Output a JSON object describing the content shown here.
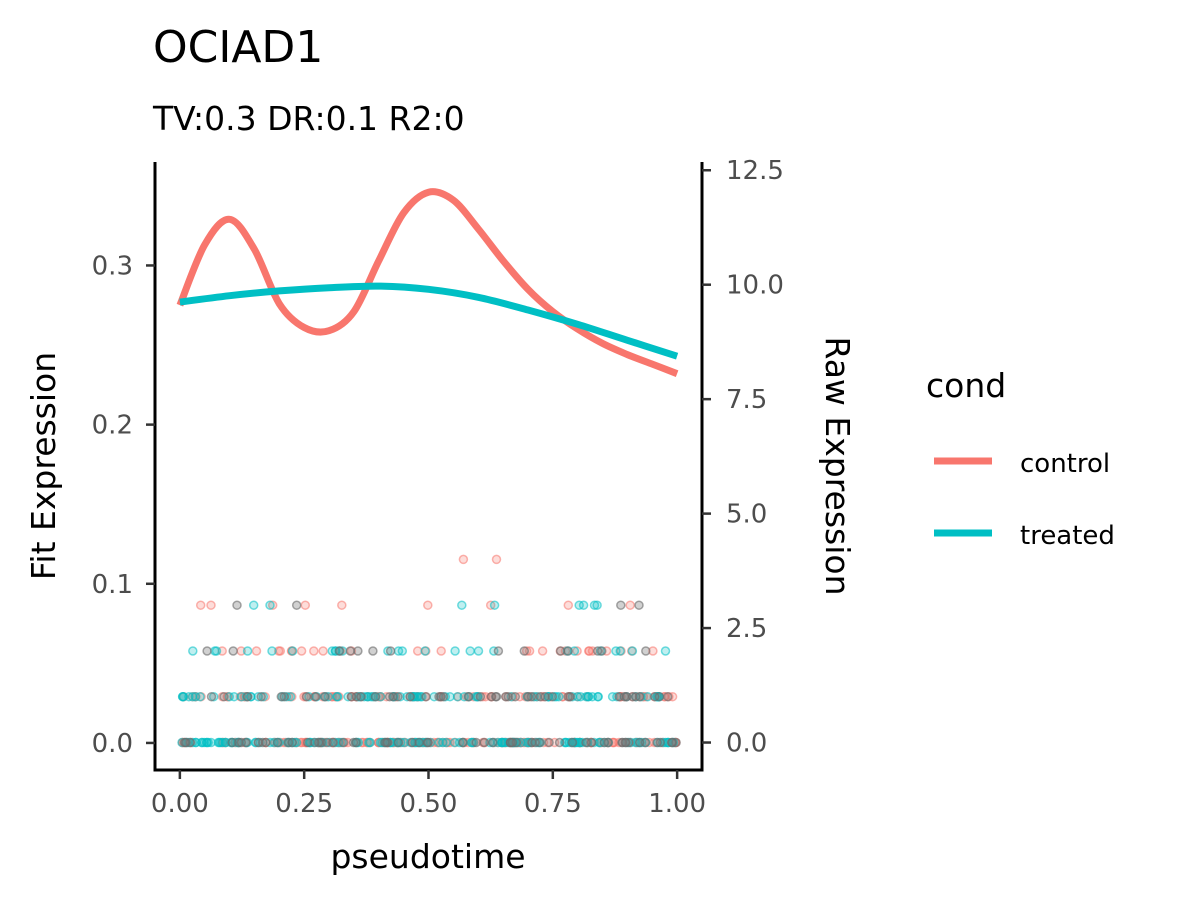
{
  "chart_data": {
    "type": "line",
    "title": "OCIAD1",
    "subtitle": "TV:0.3 DR:0.1 R2:0",
    "xlabel": "pseudotime",
    "ylabel": "Fit Expression",
    "y2label": "Raw Expression",
    "xlim": [
      -0.05,
      1.05
    ],
    "ylim": [
      -0.017,
      0.365
    ],
    "y2lim": [
      -0.6,
      12.68
    ],
    "x_ticks": [
      "0.00",
      "0.25",
      "0.50",
      "0.75",
      "1.00"
    ],
    "y_ticks": [
      "0.0",
      "0.1",
      "0.2",
      "0.3"
    ],
    "y2_ticks": [
      "0.0",
      "2.5",
      "5.0",
      "7.5",
      "10.0",
      "12.5"
    ],
    "grid": false,
    "legend": {
      "title": "cond",
      "position": "right"
    },
    "series": [
      {
        "name": "control",
        "color": "#F8766D",
        "x": [
          0.0,
          0.05,
          0.1,
          0.15,
          0.2,
          0.25,
          0.3,
          0.35,
          0.4,
          0.45,
          0.5,
          0.55,
          0.6,
          0.65,
          0.7,
          0.75,
          0.8,
          0.85,
          0.9,
          0.95,
          1.0
        ],
        "y": [
          0.275,
          0.313,
          0.329,
          0.31,
          0.276,
          0.261,
          0.259,
          0.271,
          0.303,
          0.333,
          0.346,
          0.341,
          0.323,
          0.303,
          0.285,
          0.271,
          0.26,
          0.251,
          0.244,
          0.238,
          0.232
        ]
      },
      {
        "name": "treated",
        "color": "#00BFC4",
        "x": [
          0.0,
          0.1,
          0.2,
          0.3,
          0.4,
          0.5,
          0.6,
          0.7,
          0.8,
          0.9,
          1.0
        ],
        "y": [
          0.277,
          0.281,
          0.284,
          0.286,
          0.287,
          0.285,
          0.28,
          0.272,
          0.263,
          0.253,
          0.243
        ]
      }
    ],
    "raw_points": {
      "axis": "y2",
      "levels": [
        0,
        1,
        2,
        3,
        4
      ],
      "control_counts": [
        150,
        90,
        28,
        9,
        2
      ],
      "treated_counts": [
        140,
        85,
        26,
        8,
        0
      ]
    }
  }
}
